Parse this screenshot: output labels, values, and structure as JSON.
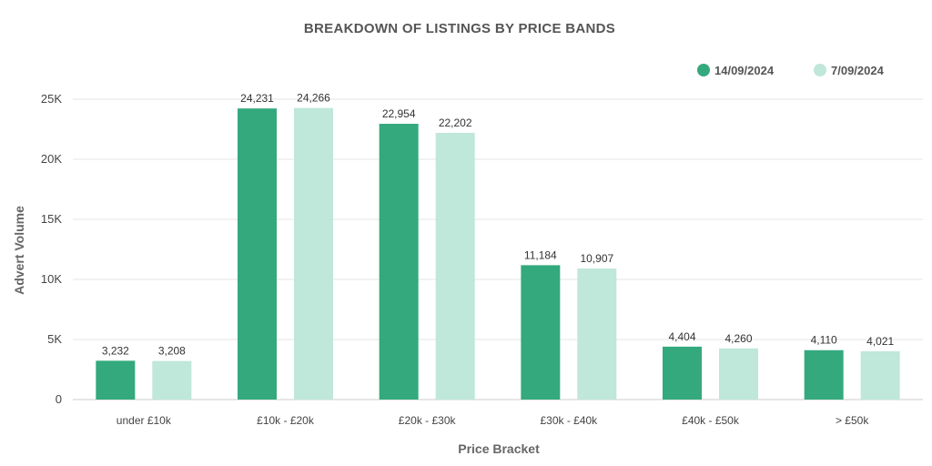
{
  "chart_data": {
    "type": "bar",
    "title": "BREAKDOWN  OF  LISTINGS  BY  PRICE BANDS",
    "xlabel": "Price Bracket",
    "ylabel": "Advert Volume",
    "categories": [
      "under £10k",
      "£10k - £20k",
      "£20k - £30k",
      "£30k - £40k",
      "£40k - £50k",
      "> £50k"
    ],
    "series": [
      {
        "name": "14/09/2024",
        "color": "#34a97e",
        "values": [
          3232,
          24231,
          22954,
          11184,
          4404,
          4110
        ],
        "labels": [
          "3,232",
          "24,231",
          "22,954",
          "11,184",
          "4,404",
          "4,110"
        ]
      },
      {
        "name": "7/09/2024",
        "color": "#bfe7da",
        "values": [
          3208,
          24266,
          22202,
          10907,
          4260,
          4021
        ],
        "labels": [
          "3,208",
          "24,266",
          "22,202",
          "10,907",
          "4,260",
          "4,021"
        ]
      }
    ],
    "ylim": [
      0,
      25000
    ],
    "yticks": [
      0,
      5000,
      10000,
      15000,
      20000,
      25000
    ],
    "ytick_labels": [
      "0",
      "5K",
      "10K",
      "15K",
      "20K",
      "25K"
    ],
    "grid": true,
    "legend_position": "top-right"
  }
}
